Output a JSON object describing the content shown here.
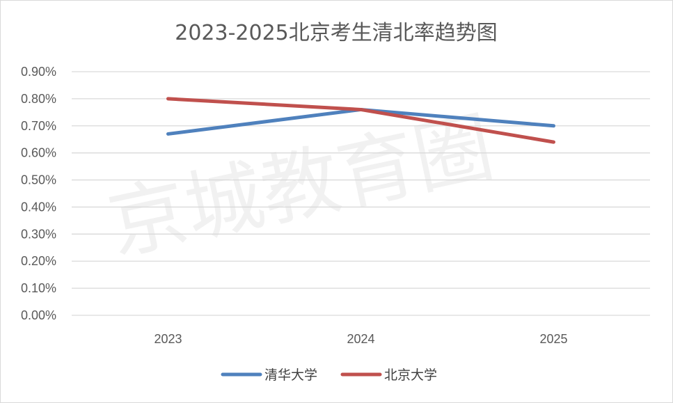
{
  "chart_data": {
    "type": "line",
    "title": "2023-2025北京考生清北率趋势图",
    "categories": [
      "2023",
      "2024",
      "2025"
    ],
    "y_ticks": [
      "0.00%",
      "0.10%",
      "0.20%",
      "0.30%",
      "0.40%",
      "0.50%",
      "0.60%",
      "0.70%",
      "0.80%",
      "0.90%"
    ],
    "ylim": [
      0,
      0.9
    ],
    "grid": true,
    "legend": "bottom",
    "series": [
      {
        "name": "清华大学",
        "values": [
          0.67,
          0.76,
          0.7
        ],
        "color": "#4f81bd"
      },
      {
        "name": "北京大学",
        "values": [
          0.8,
          0.76,
          0.64
        ],
        "color": "#c0504d"
      }
    ],
    "watermark": "京城教育圈"
  }
}
